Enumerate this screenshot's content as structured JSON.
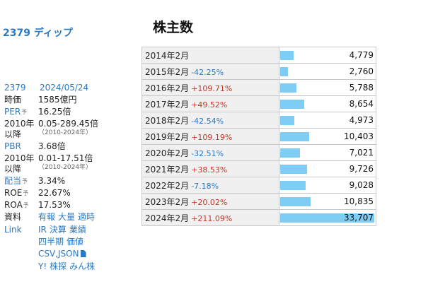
{
  "company_link": "2379 ディップ",
  "heading": "株主数",
  "side": {
    "code": "2379",
    "date": "2024/05/24",
    "market_cap_label": "時価",
    "market_cap": "1585億円",
    "per_label": "PER",
    "per": "16.25倍",
    "per_range_label": "2010年以降",
    "per_range": "0.05-289.45倍",
    "per_range_sub": "（2010-2024年）",
    "pbr_label": "PBR",
    "pbr": "3.68倍",
    "pbr_range_label": "2010年以降",
    "pbr_range": "0.01-17.51倍",
    "pbr_range_sub": "（2010-2024年）",
    "div_label": "配当",
    "div": "3.34%",
    "roe_label": "ROE",
    "roe": "22.67%",
    "roa_label": "ROA",
    "roa": "17.53%",
    "yo": "予",
    "docs_label": "資料",
    "docs_links": [
      "有報",
      "大量",
      "適時"
    ],
    "link_label": "Link",
    "link_row1": [
      "IR",
      "決算",
      "業績"
    ],
    "link_row2": [
      "四半期",
      "価値"
    ],
    "link_row3": [
      "CSV,JSON"
    ],
    "link_row4": [
      "Y!",
      "株探",
      "みん株"
    ]
  },
  "holders": [
    {
      "date": "2014年2月",
      "change": "",
      "dir": "",
      "value": 4779,
      "value_label": "4,779"
    },
    {
      "date": "2015年2月",
      "change": "-42.25%",
      "dir": "down",
      "value": 2760,
      "value_label": "2,760"
    },
    {
      "date": "2016年2月",
      "change": "+109.71%",
      "dir": "up",
      "value": 5788,
      "value_label": "5,788"
    },
    {
      "date": "2017年2月",
      "change": "+49.52%",
      "dir": "up",
      "value": 8654,
      "value_label": "8,654"
    },
    {
      "date": "2018年2月",
      "change": "-42.54%",
      "dir": "down",
      "value": 4973,
      "value_label": "4,973"
    },
    {
      "date": "2019年2月",
      "change": "+109.19%",
      "dir": "up",
      "value": 10403,
      "value_label": "10,403"
    },
    {
      "date": "2020年2月",
      "change": "-32.51%",
      "dir": "down",
      "value": 7021,
      "value_label": "7,021"
    },
    {
      "date": "2021年2月",
      "change": "+38.53%",
      "dir": "up",
      "value": 9726,
      "value_label": "9,726"
    },
    {
      "date": "2022年2月",
      "change": "-7.18%",
      "dir": "down",
      "value": 9028,
      "value_label": "9,028"
    },
    {
      "date": "2023年2月",
      "change": "+20.02%",
      "dir": "up",
      "value": 10835,
      "value_label": "10,835"
    },
    {
      "date": "2024年2月",
      "change": "+211.09%",
      "dir": "up",
      "value": 33707,
      "value_label": "33,707"
    }
  ],
  "colors": {
    "link": "#2a79c4",
    "up": "#c0392b",
    "down": "#2a79c4",
    "bar": "#7fcdf4"
  }
}
